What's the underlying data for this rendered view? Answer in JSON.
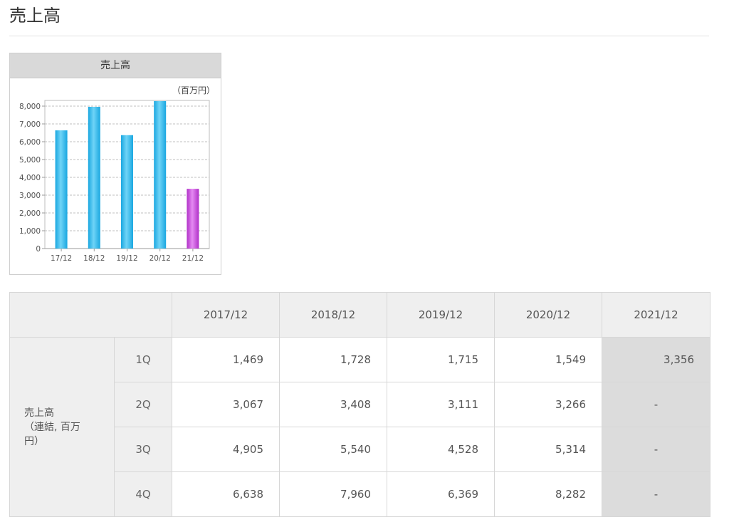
{
  "page": {
    "title": "売上高"
  },
  "chart_card": {
    "header": "売上高"
  },
  "chart_data": {
    "type": "bar",
    "title": "売上高",
    "unit_label": "（百万円）",
    "categories": [
      "17/12",
      "18/12",
      "19/12",
      "20/12",
      "21/12"
    ],
    "values": [
      6638,
      7960,
      6369,
      8282,
      3356
    ],
    "ylim": [
      0,
      8000
    ],
    "yticks": [
      0,
      1000,
      2000,
      3000,
      4000,
      5000,
      6000,
      7000,
      8000
    ],
    "ytick_labels": [
      "0",
      "1,000",
      "2,000",
      "3,000",
      "4,000",
      "5,000",
      "6,000",
      "7,000",
      "8,000"
    ],
    "grid": true,
    "colors": {
      "bar": "#1aa7e0",
      "bar_highlight": "#6fd4f7",
      "latest_bar": "#b030c8",
      "latest_highlight": "#e58af2",
      "grid": "#bfbfbf"
    }
  },
  "table": {
    "columns": [
      "2017/12",
      "2018/12",
      "2019/12",
      "2020/12",
      "2021/12"
    ],
    "metric_label": "売上高（連結, 百万円）",
    "metric_lines": [
      "売上高",
      "（連結, 百万",
      "円）"
    ],
    "rows": [
      {
        "quarter": "1Q",
        "values": [
          "1,469",
          "1,728",
          "1,715",
          "1,549",
          "3,356"
        ]
      },
      {
        "quarter": "2Q",
        "values": [
          "3,067",
          "3,408",
          "3,111",
          "3,266",
          "-"
        ]
      },
      {
        "quarter": "3Q",
        "values": [
          "4,905",
          "5,540",
          "4,528",
          "5,314",
          "-"
        ]
      },
      {
        "quarter": "4Q",
        "values": [
          "6,638",
          "7,960",
          "6,369",
          "8,282",
          "-"
        ]
      }
    ]
  }
}
